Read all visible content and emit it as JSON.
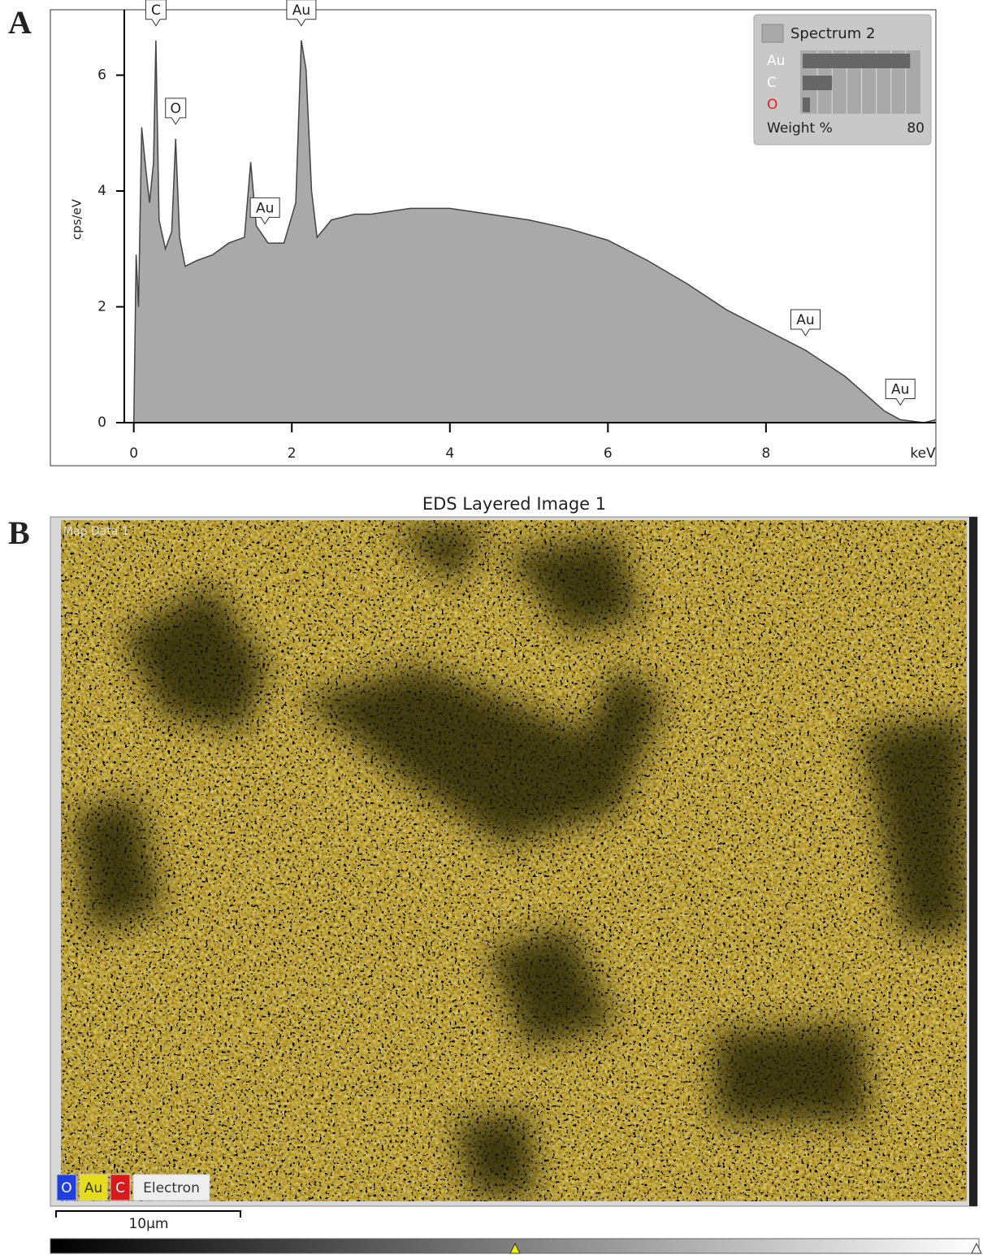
{
  "panel_labels": [
    "A",
    "B"
  ],
  "chart_data": {
    "type": "area",
    "x_label": "keV",
    "y_label": "cps/eV",
    "xlim": [
      -0.12,
      10.15
    ],
    "ylim": [
      0,
      7.13
    ],
    "xticks": [
      0,
      2,
      4,
      6,
      8
    ],
    "yticks": [
      0,
      2,
      4,
      6
    ],
    "x": [
      0.0,
      0.03,
      0.06,
      0.1,
      0.15,
      0.2,
      0.25,
      0.28,
      0.32,
      0.4,
      0.48,
      0.53,
      0.58,
      0.65,
      0.8,
      1.0,
      1.2,
      1.4,
      1.48,
      1.55,
      1.7,
      1.9,
      2.05,
      2.12,
      2.18,
      2.25,
      2.32,
      2.5,
      2.8,
      3.0,
      3.5,
      4.0,
      4.5,
      5.0,
      5.5,
      6.0,
      6.5,
      7.0,
      7.5,
      8.0,
      8.5,
      9.0,
      9.5,
      9.7,
      10.0,
      10.15
    ],
    "series": [
      {
        "name": "Spectrum 2",
        "color": "#a9a9a9",
        "values": [
          0,
          2.9,
          2.0,
          5.1,
          4.4,
          3.8,
          4.5,
          6.6,
          3.5,
          3.0,
          3.3,
          4.9,
          3.2,
          2.7,
          2.8,
          2.9,
          3.1,
          3.2,
          4.5,
          3.4,
          3.1,
          3.1,
          3.8,
          6.6,
          6.1,
          4.0,
          3.2,
          3.5,
          3.6,
          3.6,
          3.7,
          3.7,
          3.6,
          3.5,
          3.35,
          3.15,
          2.8,
          2.4,
          1.95,
          1.6,
          1.25,
          0.8,
          0.2,
          0.05,
          0.0,
          0.05
        ]
      }
    ],
    "annotations": [
      {
        "text": "C",
        "x": 0.28
      },
      {
        "text": "O",
        "x": 0.53
      },
      {
        "text": "Au",
        "x": 1.66
      },
      {
        "text": "Au",
        "x": 2.12
      },
      {
        "text": "Au",
        "x": 8.5
      },
      {
        "text": "Au",
        "x": 9.7
      }
    ],
    "inset": {
      "label": "Weight %",
      "max": 80,
      "elements": [
        "Au",
        "C",
        "O"
      ],
      "values": [
        73,
        20,
        5
      ],
      "colors": [
        "#ffffff",
        "#ffffff",
        "#e02020"
      ]
    }
  },
  "map": {
    "title": "EDS Layered Image 1",
    "layer": "Map Data 1",
    "legend": [
      {
        "label": "O",
        "color": "#1f3fe0"
      },
      {
        "label": "Au",
        "color": "#e6dc1a"
      },
      {
        "label": "C",
        "color": "#d81a1a"
      },
      {
        "label": "Electron",
        "color": "#eeeeee"
      }
    ],
    "scale_bar": "10µm"
  }
}
